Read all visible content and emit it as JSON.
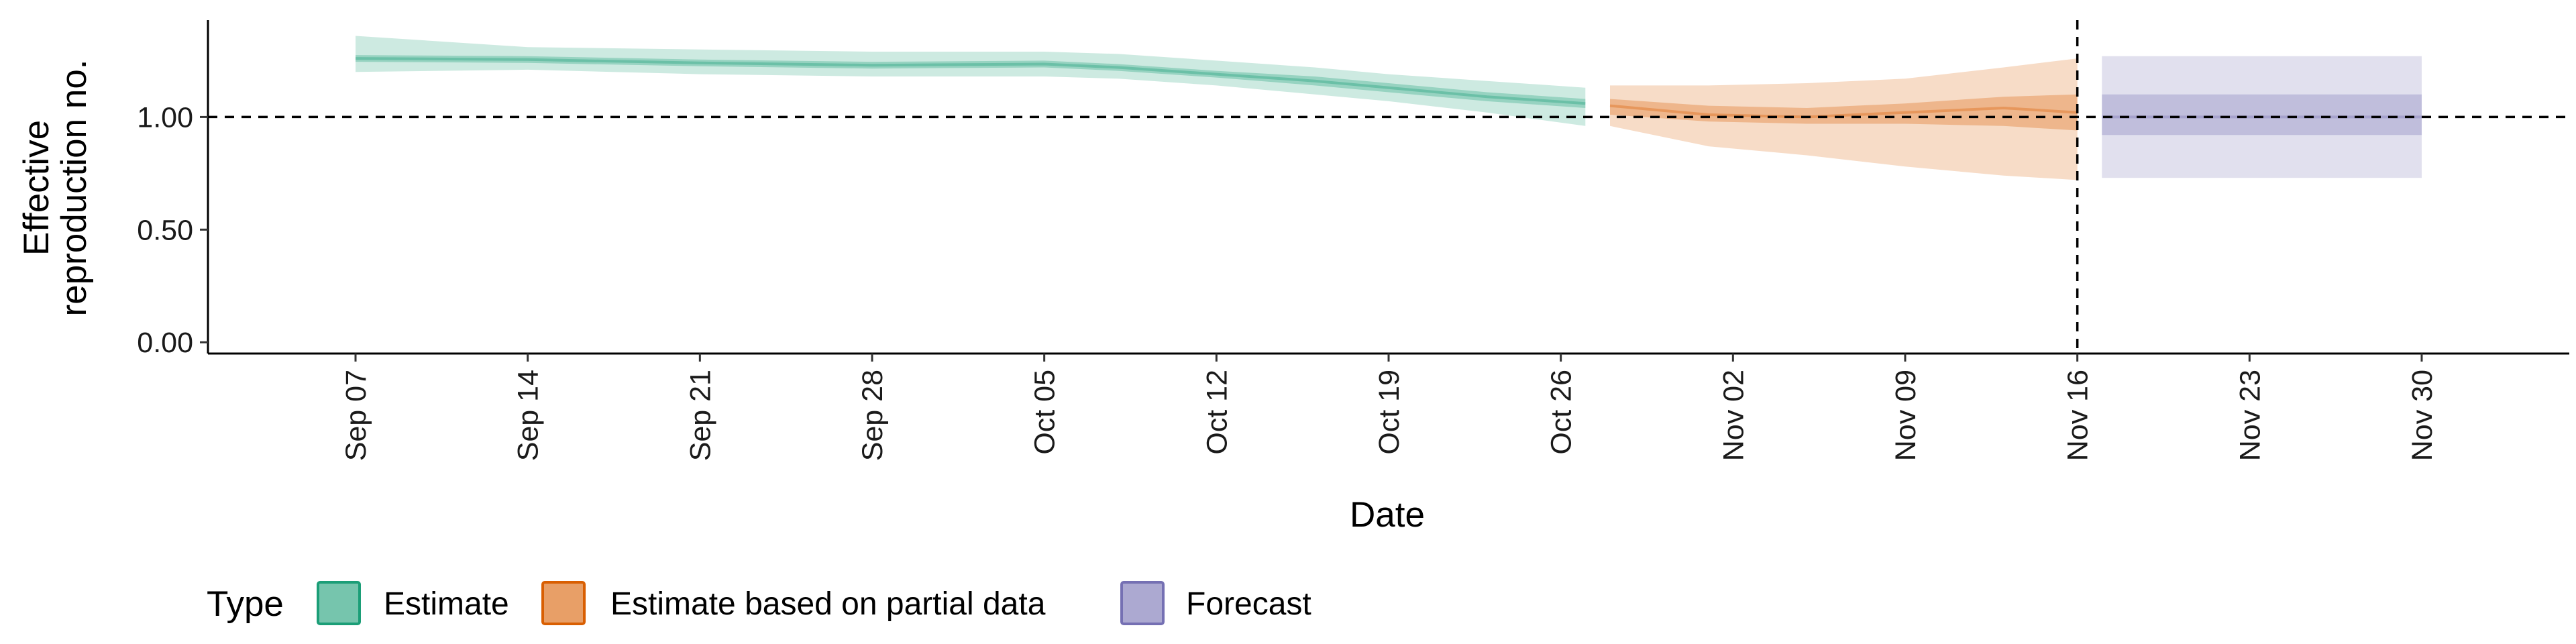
{
  "chart_data": {
    "type": "area",
    "title": "",
    "xlabel": "Date",
    "ylabel": [
      "Effective",
      "reproduction no."
    ],
    "x_range": [
      "2020-09-01",
      "2020-12-06"
    ],
    "ylim": [
      -0.05,
      1.43
    ],
    "y_ticks": [
      0.0,
      0.5,
      1.0
    ],
    "y_tick_labels": [
      "0.00",
      "0.50",
      "1.00"
    ],
    "x_ticks": [
      "2020-09-07",
      "2020-09-14",
      "2020-09-21",
      "2020-09-28",
      "2020-10-05",
      "2020-10-12",
      "2020-10-19",
      "2020-10-26",
      "2020-11-02",
      "2020-11-09",
      "2020-11-16",
      "2020-11-23",
      "2020-11-30"
    ],
    "x_tick_labels": [
      "Sep 07",
      "Sep 14",
      "Sep 21",
      "Sep 28",
      "Oct 05",
      "Oct 12",
      "Oct 19",
      "Oct 26",
      "Nov 02",
      "Nov 09",
      "Nov 16",
      "Nov 23",
      "Nov 30"
    ],
    "reference_hline": 1.0,
    "reference_vline": "2020-11-16",
    "grid": false,
    "legend_position": "bottom-left",
    "legend_title": "Type",
    "series": [
      {
        "name": "Estimate",
        "color": "#1b9e77",
        "x": [
          "2020-09-07",
          "2020-09-14",
          "2020-09-21",
          "2020-09-28",
          "2020-10-05",
          "2020-10-08",
          "2020-10-12",
          "2020-10-16",
          "2020-10-19",
          "2020-10-23",
          "2020-10-27"
        ],
        "median": [
          1.26,
          1.255,
          1.24,
          1.23,
          1.235,
          1.22,
          1.19,
          1.16,
          1.13,
          1.09,
          1.06
        ],
        "lower_50": [
          1.245,
          1.24,
          1.225,
          1.215,
          1.22,
          1.205,
          1.175,
          1.14,
          1.11,
          1.07,
          1.04
        ],
        "upper_50": [
          1.275,
          1.27,
          1.255,
          1.245,
          1.25,
          1.235,
          1.205,
          1.18,
          1.15,
          1.11,
          1.08
        ],
        "lower_90": [
          1.2,
          1.21,
          1.19,
          1.18,
          1.18,
          1.17,
          1.14,
          1.1,
          1.07,
          1.02,
          0.96
        ],
        "upper_90": [
          1.36,
          1.31,
          1.3,
          1.29,
          1.29,
          1.28,
          1.25,
          1.22,
          1.19,
          1.16,
          1.13
        ]
      },
      {
        "name": "Estimate based on partial data",
        "color": "#d95f02",
        "x": [
          "2020-10-28",
          "2020-11-01",
          "2020-11-05",
          "2020-11-09",
          "2020-11-13",
          "2020-11-16"
        ],
        "median": [
          1.05,
          1.01,
          1.0,
          1.02,
          1.04,
          1.02
        ],
        "lower_50": [
          1.01,
          0.98,
          0.97,
          0.97,
          0.96,
          0.94
        ],
        "upper_50": [
          1.08,
          1.05,
          1.04,
          1.06,
          1.09,
          1.1
        ],
        "lower_90": [
          0.96,
          0.87,
          0.83,
          0.78,
          0.74,
          0.72
        ],
        "upper_90": [
          1.14,
          1.14,
          1.15,
          1.17,
          1.22,
          1.26
        ]
      },
      {
        "name": "Forecast",
        "color": "#7570b3",
        "x": [
          "2020-11-17",
          "2020-11-30"
        ],
        "median": [
          1.0,
          1.0
        ],
        "lower_50": [
          0.92,
          0.92
        ],
        "upper_50": [
          1.1,
          1.1
        ],
        "lower_90": [
          0.73,
          0.73
        ],
        "upper_90": [
          1.27,
          1.27
        ]
      }
    ]
  }
}
